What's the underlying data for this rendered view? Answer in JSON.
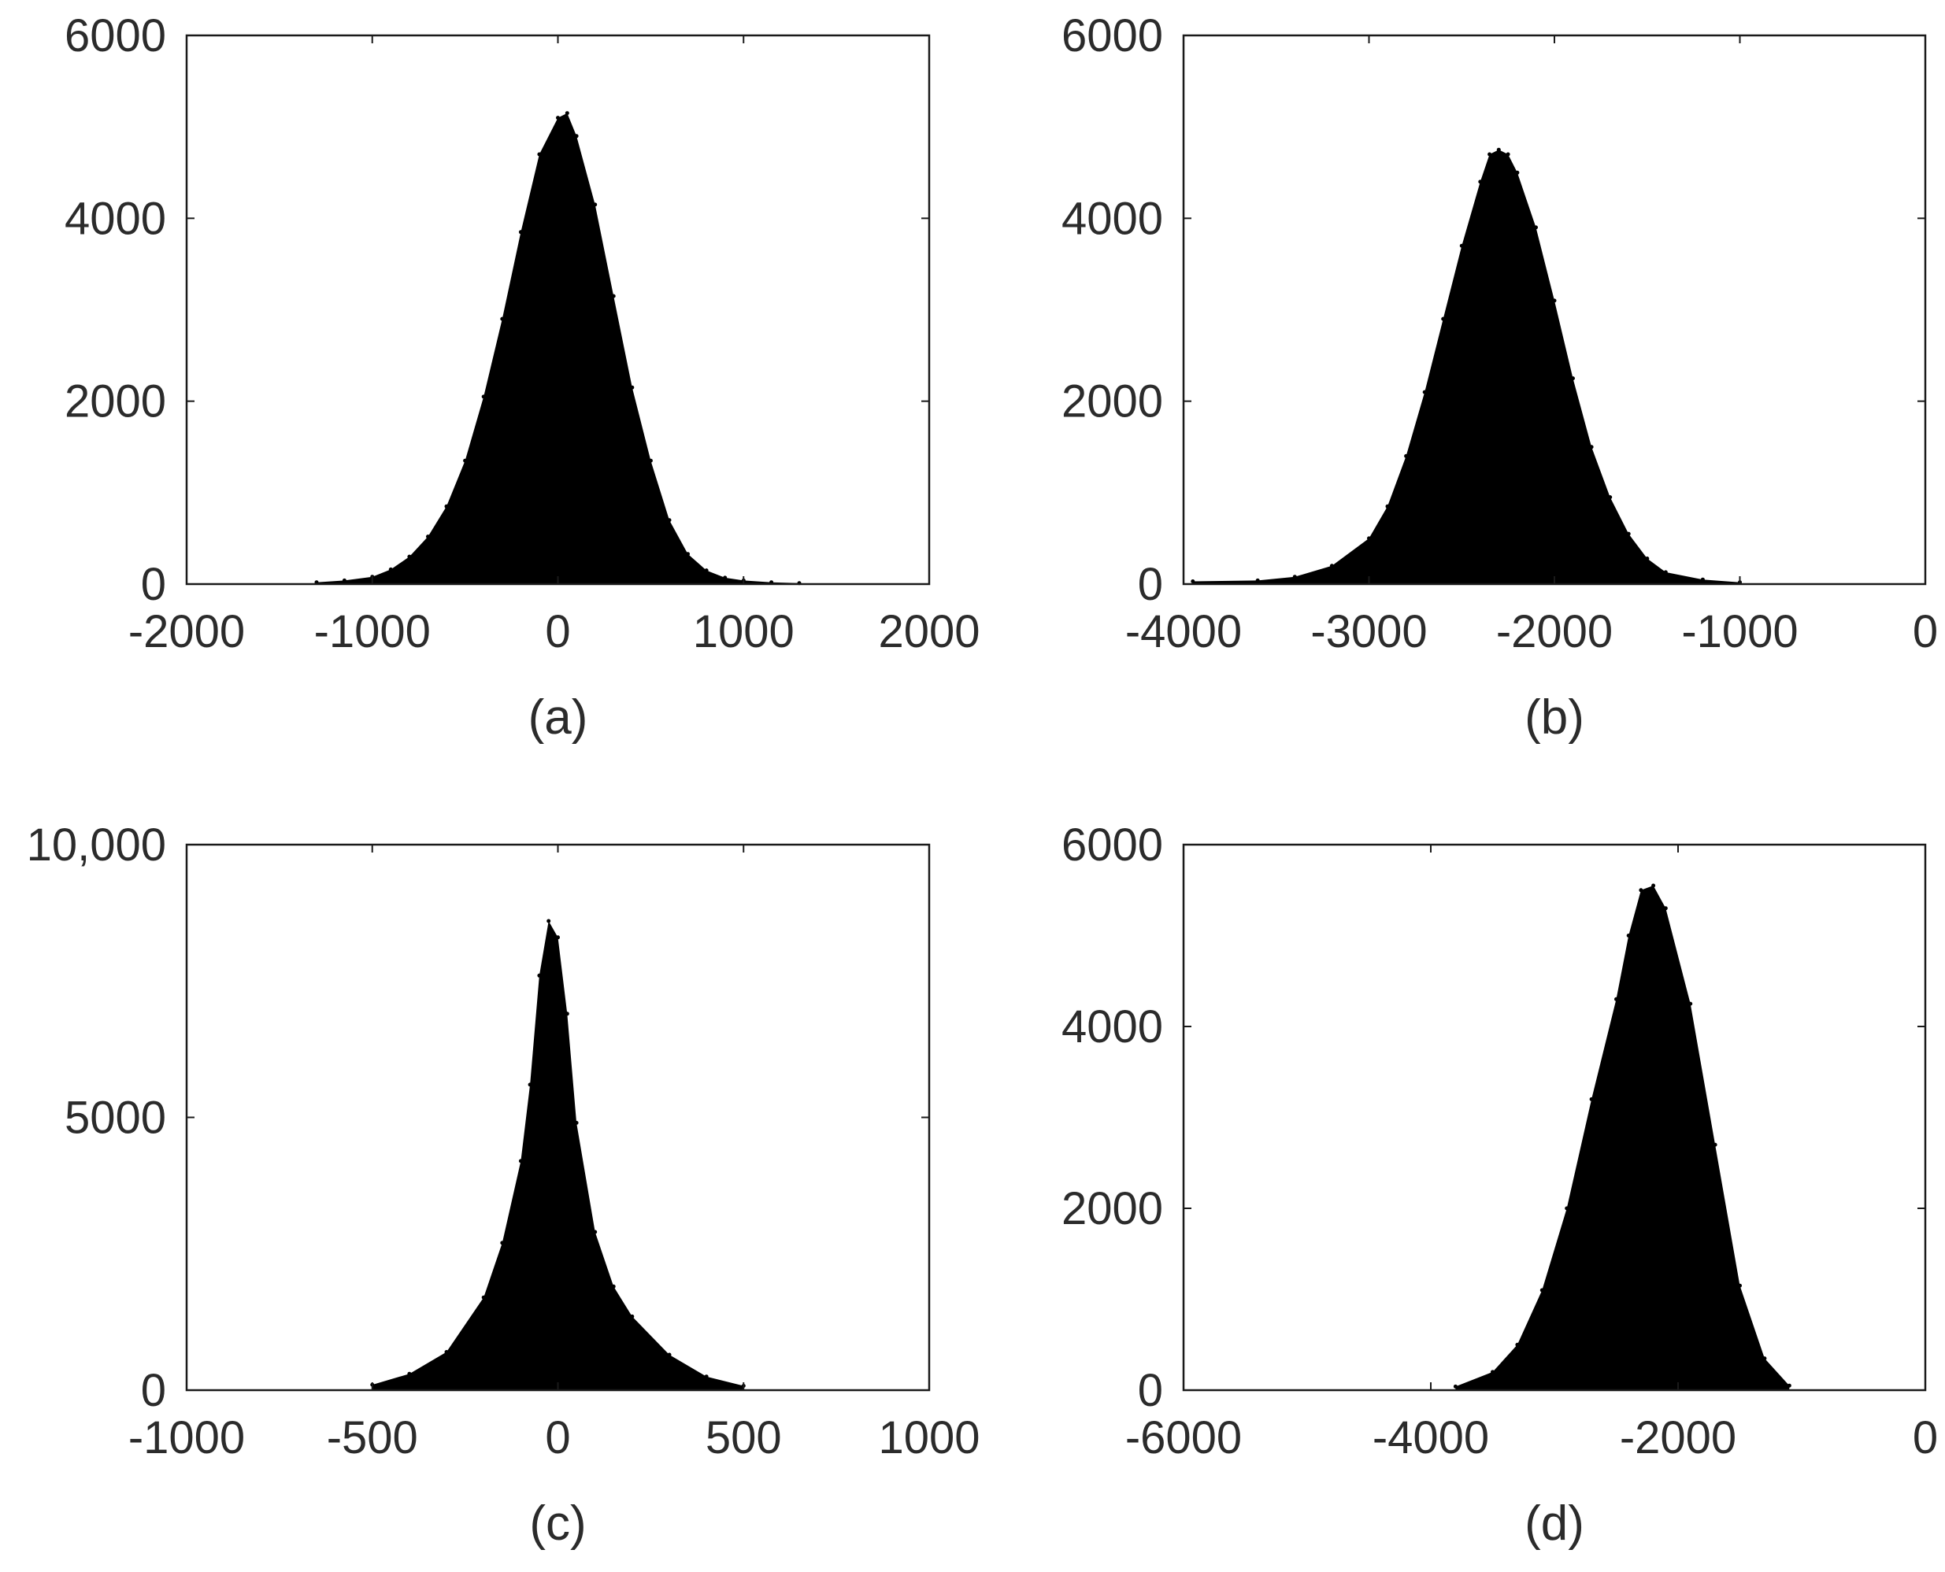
{
  "chart_data": [
    {
      "type": "bar",
      "caption": "(a)",
      "xlim": [
        -2000,
        2000
      ],
      "ylim": [
        0,
        6000
      ],
      "xticks": [
        -2000,
        -1000,
        0,
        1000,
        2000
      ],
      "xtick_labels": [
        "-2000",
        "-1000",
        "0",
        "1000",
        "2000"
      ],
      "yticks": [
        0,
        2000,
        4000,
        6000
      ],
      "ytick_labels": [
        "0",
        "2000",
        "4000",
        "6000"
      ],
      "x": [
        -1300,
        -1150,
        -1000,
        -900,
        -800,
        -700,
        -600,
        -500,
        -400,
        -300,
        -200,
        -100,
        0,
        50,
        100,
        200,
        300,
        400,
        500,
        600,
        700,
        800,
        900,
        1000,
        1150,
        1300
      ],
      "values": [
        20,
        40,
        80,
        160,
        300,
        520,
        850,
        1350,
        2050,
        2900,
        3850,
        4700,
        5100,
        5150,
        4900,
        4150,
        3150,
        2150,
        1350,
        700,
        330,
        150,
        70,
        40,
        20,
        10
      ],
      "color": "#000000"
    },
    {
      "type": "bar",
      "caption": "(b)",
      "xlim": [
        -4000,
        0
      ],
      "ylim": [
        0,
        6000
      ],
      "xticks": [
        -4000,
        -3000,
        -2000,
        -1000,
        0
      ],
      "xtick_labels": [
        "-4000",
        "-3000",
        "-2000",
        "-1000",
        "0"
      ],
      "yticks": [
        0,
        2000,
        4000,
        6000
      ],
      "ytick_labels": [
        "0",
        "2000",
        "4000",
        "6000"
      ],
      "x": [
        -3950,
        -3600,
        -3400,
        -3200,
        -3000,
        -2900,
        -2800,
        -2700,
        -2600,
        -2500,
        -2400,
        -2350,
        -2300,
        -2250,
        -2200,
        -2100,
        -2000,
        -1900,
        -1800,
        -1700,
        -1600,
        -1500,
        -1400,
        -1200,
        -1000
      ],
      "values": [
        30,
        40,
        80,
        200,
        500,
        850,
        1400,
        2100,
        2900,
        3700,
        4400,
        4700,
        4750,
        4700,
        4500,
        3900,
        3100,
        2250,
        1500,
        950,
        550,
        280,
        130,
        50,
        20
      ],
      "color": "#000000"
    },
    {
      "type": "bar",
      "caption": "(c)",
      "xlim": [
        -1000,
        1000
      ],
      "ylim": [
        0,
        10000
      ],
      "xticks": [
        -1000,
        -500,
        0,
        500,
        1000
      ],
      "xtick_labels": [
        "-1000",
        "-500",
        "0",
        "500",
        "1000"
      ],
      "yticks": [
        0,
        5000,
        10000
      ],
      "ytick_labels": [
        "0",
        "5000",
        "10,000"
      ],
      "x": [
        -500,
        -400,
        -300,
        -200,
        -150,
        -100,
        -75,
        -50,
        -25,
        0,
        25,
        50,
        100,
        150,
        200,
        300,
        400,
        500
      ],
      "values": [
        100,
        300,
        700,
        1700,
        2700,
        4200,
        5600,
        7600,
        8600,
        8300,
        6900,
        4900,
        2900,
        1900,
        1350,
        650,
        250,
        80
      ],
      "color": "#000000"
    },
    {
      "type": "bar",
      "caption": "(d)",
      "xlim": [
        -6000,
        0
      ],
      "ylim": [
        0,
        6000
      ],
      "xticks": [
        -6000,
        -4000,
        -2000,
        0
      ],
      "xtick_labels": [
        "-6000",
        "-4000",
        "-2000",
        "0"
      ],
      "yticks": [
        0,
        2000,
        4000,
        6000
      ],
      "ytick_labels": [
        "0",
        "2000",
        "4000",
        "6000"
      ],
      "x": [
        -3800,
        -3500,
        -3300,
        -3100,
        -2900,
        -2700,
        -2500,
        -2400,
        -2300,
        -2200,
        -2100,
        -1900,
        -1700,
        -1500,
        -1300,
        -1100
      ],
      "values": [
        40,
        200,
        500,
        1100,
        2000,
        3200,
        4300,
        5000,
        5500,
        5550,
        5300,
        4250,
        2700,
        1150,
        350,
        50
      ],
      "color": "#000000"
    }
  ]
}
